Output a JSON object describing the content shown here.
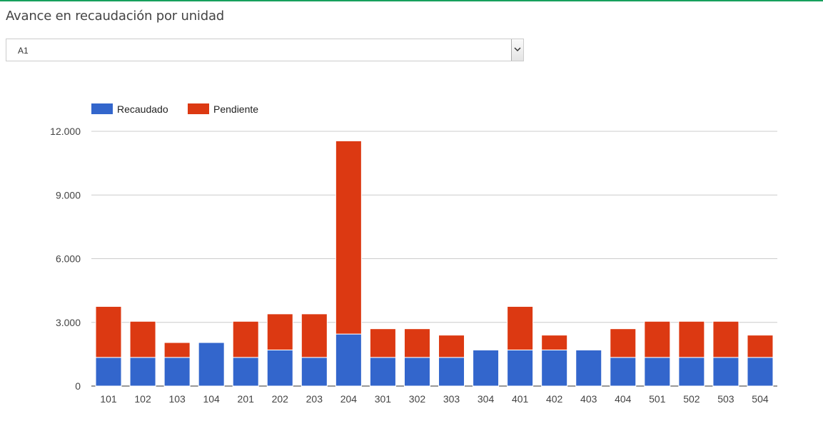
{
  "header": {
    "title": "Avance en recaudación por unidad"
  },
  "unit_select": {
    "value": "A1",
    "arrow_icon": "chevron-down-icon"
  },
  "colors": {
    "recaudado": "#3366cc",
    "pendiente": "#dc3912",
    "accent": "#17a05d"
  },
  "chart_data": {
    "type": "bar",
    "stacked": true,
    "title": "",
    "xlabel": "",
    "ylabel": "",
    "ylim": [
      0,
      12000
    ],
    "yticks": [
      0,
      3000,
      6000,
      9000,
      12000
    ],
    "ytick_labels": [
      "0",
      "3.000",
      "6.000",
      "9.000",
      "12.000"
    ],
    "grid": true,
    "legend_position": "top-left",
    "categories": [
      "101",
      "102",
      "103",
      "104",
      "201",
      "202",
      "203",
      "204",
      "301",
      "302",
      "303",
      "304",
      "401",
      "402",
      "403",
      "404",
      "501",
      "502",
      "503",
      "504"
    ],
    "series": [
      {
        "name": "Recaudado",
        "color": "#3366cc",
        "values": [
          1350,
          1350,
          1350,
          2050,
          1350,
          1700,
          1350,
          2450,
          1350,
          1350,
          1350,
          1700,
          1700,
          1700,
          1700,
          1350,
          1350,
          1350,
          1350,
          1350
        ]
      },
      {
        "name": "Pendiente",
        "color": "#dc3912",
        "values": [
          2400,
          1700,
          700,
          0,
          1700,
          1700,
          2050,
          9100,
          1350,
          1350,
          1050,
          30,
          2050,
          700,
          30,
          1350,
          1700,
          1700,
          1700,
          1050
        ]
      }
    ]
  }
}
